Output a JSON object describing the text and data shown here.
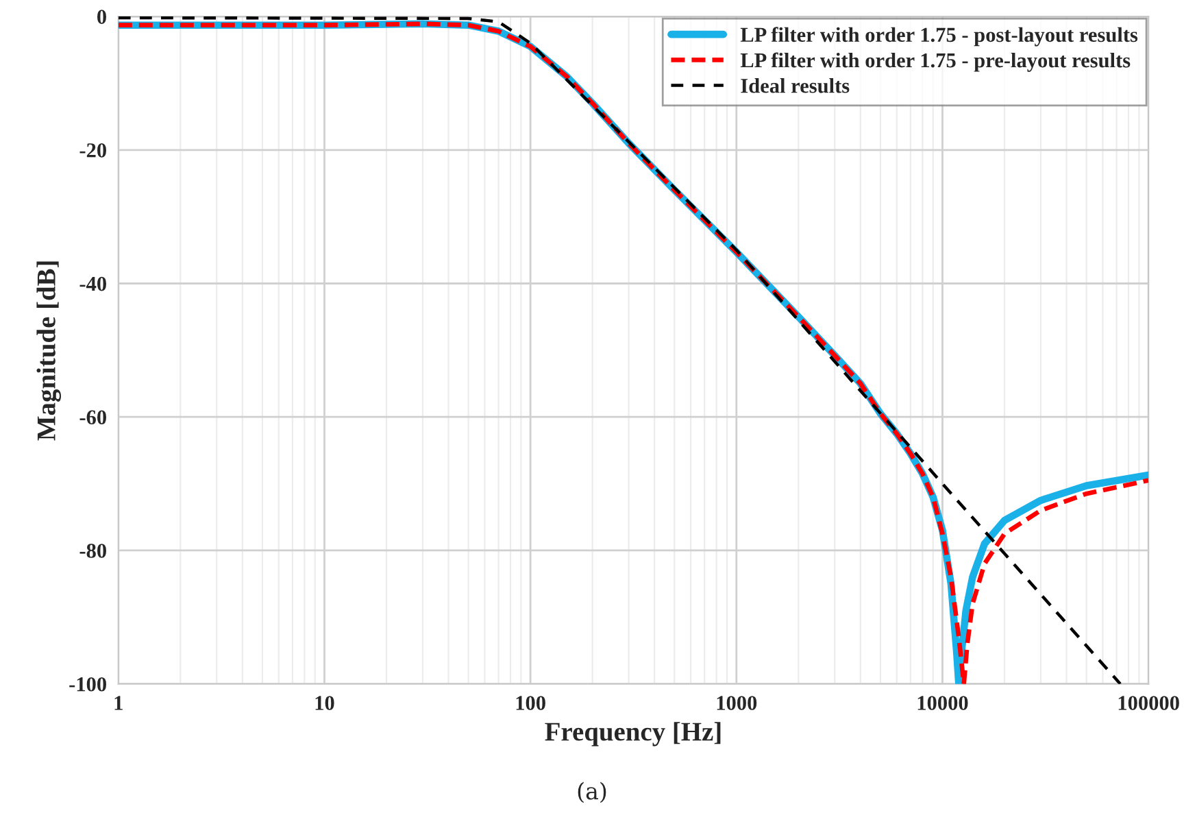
{
  "chart_data": {
    "type": "line",
    "xlabel": "Frequency [Hz]",
    "ylabel": "Magnitude [dB]",
    "log": "x",
    "xlim": [
      1,
      100000
    ],
    "xticks": [
      1,
      10,
      100,
      1000,
      10000,
      100000
    ],
    "ylim": [
      -100,
      0
    ],
    "yticks": [
      -100,
      -80,
      -60,
      -40,
      -20,
      0
    ],
    "grid": true,
    "legend": "top right",
    "annotations": [
      "(a)"
    ],
    "series": [
      {
        "name": "LP filter with order 1.75 - post-layout results",
        "color": "#1ab0e8",
        "line_style": "solid",
        "x": [
          1,
          10,
          30,
          50,
          70,
          100,
          150,
          200,
          300,
          500,
          1000,
          2000,
          3000,
          4000,
          5000,
          6000,
          7000,
          8000,
          9000,
          10000,
          11000,
          11700,
          12000,
          12300,
          13000,
          14000,
          16000,
          20000,
          30000,
          50000,
          100000
        ],
        "values": [
          -1.3,
          -1.3,
          -1.1,
          -1.3,
          -2.2,
          -4.5,
          -9,
          -13,
          -19,
          -26,
          -35.3,
          -45,
          -50.8,
          -55,
          -59.5,
          -62.5,
          -65.5,
          -68.5,
          -72,
          -77,
          -85,
          -95,
          -100,
          -96,
          -89,
          -84,
          -79,
          -75.5,
          -72.5,
          -70.3,
          -68.7
        ]
      },
      {
        "name": "LP filter with order 1.75 - pre-layout results",
        "color": "#ff0000",
        "line_style": "dashed",
        "x": [
          1,
          10,
          30,
          50,
          70,
          100,
          150,
          200,
          300,
          500,
          1000,
          2000,
          3000,
          4000,
          5000,
          6000,
          7000,
          8000,
          9000,
          10000,
          11000,
          12000,
          12700,
          13200,
          14000,
          16000,
          20000,
          30000,
          50000,
          100000
        ],
        "values": [
          -1.3,
          -1.3,
          -1.1,
          -1.3,
          -2.2,
          -4.5,
          -9,
          -13,
          -19,
          -26,
          -35.3,
          -45,
          -50.8,
          -55,
          -59.5,
          -62.5,
          -65.5,
          -68.5,
          -72,
          -77.5,
          -84,
          -93,
          -100,
          -94,
          -88,
          -82,
          -77.5,
          -74,
          -71.5,
          -69.5
        ]
      },
      {
        "name": "Ideal results",
        "color": "#000000",
        "line_style": "dashed",
        "x": [
          1,
          50,
          70,
          100,
          1000,
          10000,
          73000
        ],
        "values": [
          -0.2,
          -0.3,
          -0.8,
          -4,
          -35,
          -70,
          -100
        ]
      }
    ]
  }
}
